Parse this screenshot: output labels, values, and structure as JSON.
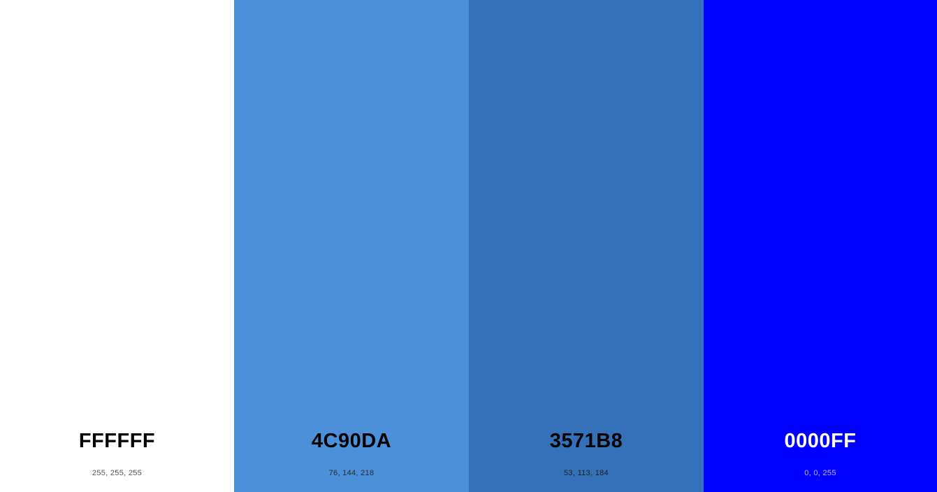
{
  "swatches": [
    {
      "hex": "FFFFFF",
      "rgb": "255, 255, 255",
      "color": "#FFFFFF",
      "text_color": "#000000",
      "sub_color": "#555555"
    },
    {
      "hex": "4C90DA",
      "rgb": "76, 144, 218",
      "color": "#4C90DA",
      "text_color": "#000000",
      "sub_color": "#2a2a2a"
    },
    {
      "hex": "3571B8",
      "rgb": "53, 113, 184",
      "color": "#3571B8",
      "text_color": "#000000",
      "sub_color": "#1e1e1e"
    },
    {
      "hex": "0000FF",
      "rgb": "0, 0, 255",
      "color": "#0000FF",
      "text_color": "#FFFFFF",
      "sub_color": "#b8b8ff"
    }
  ]
}
